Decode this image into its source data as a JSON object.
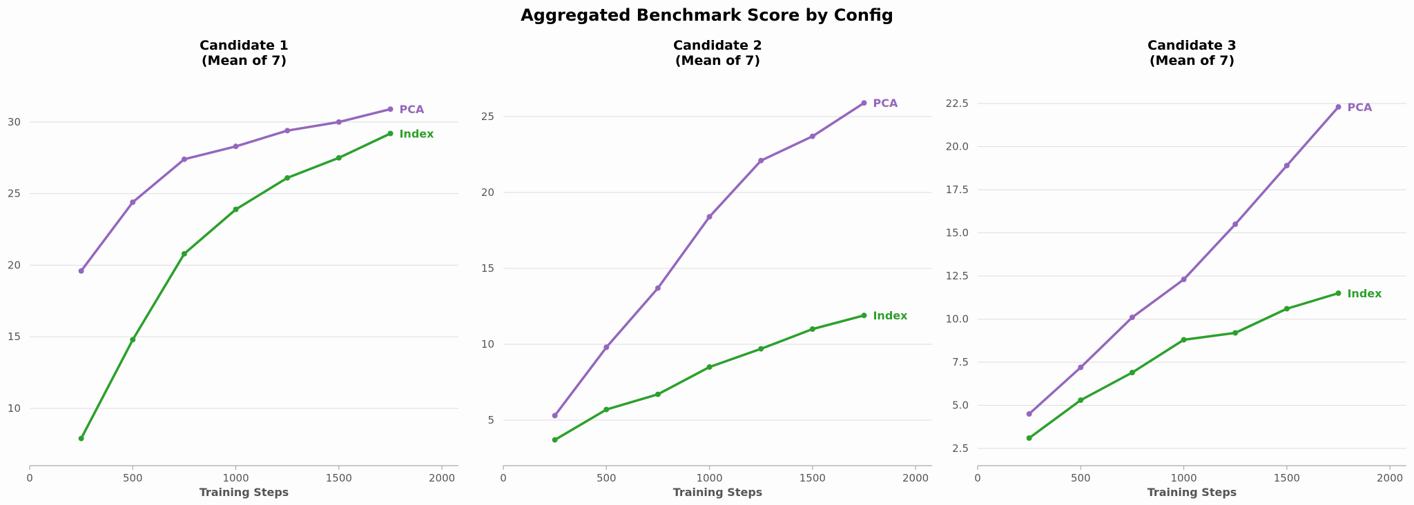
{
  "title": "Aggregated Benchmark Score by Config",
  "colors": {
    "PCA": "#9467bd",
    "Index": "#2ca02c"
  },
  "chart_data": [
    {
      "type": "line",
      "title_lines": [
        "Candidate 1",
        "(Mean of 7)"
      ],
      "xlabel": "Training Steps",
      "ylabel": "",
      "xlim": [
        0,
        2080
      ],
      "ylim": [
        6,
        32.5
      ],
      "xticks": [
        "0",
        "500",
        "1000",
        "1500",
        "2000"
      ],
      "yticks": [
        "10",
        "15",
        "20",
        "25",
        "30"
      ],
      "x": [
        250,
        500,
        750,
        1000,
        1250,
        1500,
        1750
      ],
      "series": [
        {
          "name": "PCA",
          "values": [
            19.6,
            24.4,
            27.4,
            28.3,
            29.4,
            30.0,
            30.9
          ]
        },
        {
          "name": "Index",
          "values": [
            7.9,
            14.8,
            20.8,
            23.9,
            26.1,
            27.5,
            29.2
          ]
        }
      ]
    },
    {
      "type": "line",
      "title_lines": [
        "Candidate 2",
        "(Mean of 7)"
      ],
      "xlabel": "Training Steps",
      "ylabel": "",
      "xlim": [
        0,
        2080
      ],
      "ylim": [
        2,
        27
      ],
      "xticks": [
        "0",
        "500",
        "1000",
        "1500",
        "2000"
      ],
      "yticks": [
        "5",
        "10",
        "15",
        "20",
        "25"
      ],
      "x": [
        250,
        500,
        750,
        1000,
        1250,
        1500,
        1750
      ],
      "series": [
        {
          "name": "PCA",
          "values": [
            5.3,
            9.8,
            13.7,
            18.4,
            22.1,
            23.7,
            25.9
          ]
        },
        {
          "name": "Index",
          "values": [
            3.7,
            5.7,
            6.7,
            8.5,
            9.7,
            11.0,
            11.9
          ]
        }
      ]
    },
    {
      "type": "line",
      "title_lines": [
        "Candidate 3",
        "(Mean of 7)"
      ],
      "xlabel": "Training Steps",
      "ylabel": "",
      "xlim": [
        0,
        2080
      ],
      "ylim": [
        1.5,
        23.5
      ],
      "xticks": [
        "0",
        "500",
        "1000",
        "1500",
        "2000"
      ],
      "yticks": [
        "2.5",
        "5.0",
        "7.5",
        "10.0",
        "12.5",
        "15.0",
        "17.5",
        "20.0",
        "22.5"
      ],
      "x": [
        250,
        500,
        750,
        1000,
        1250,
        1500,
        1750
      ],
      "series": [
        {
          "name": "PCA",
          "values": [
            4.5,
            7.2,
            10.1,
            12.3,
            15.5,
            18.9,
            22.3
          ]
        },
        {
          "name": "Index",
          "values": [
            3.1,
            5.3,
            6.9,
            8.8,
            9.2,
            10.6,
            11.5
          ]
        }
      ]
    }
  ]
}
